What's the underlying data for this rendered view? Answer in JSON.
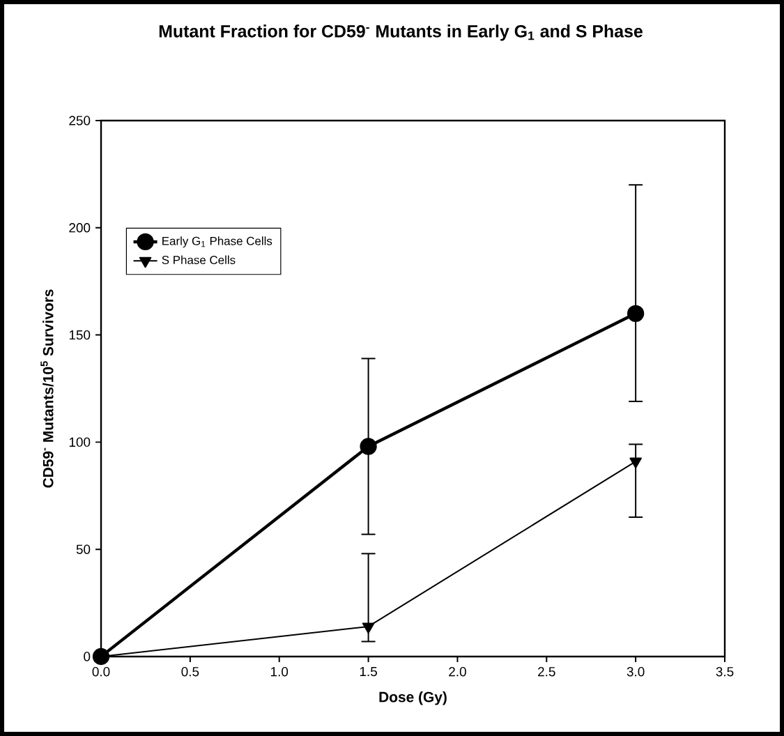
{
  "chart_data": {
    "type": "line",
    "title": "Mutant Fraction for CD59$^{-}$ Mutants in Early G$_{1}$ and S Phase",
    "xlabel": "Dose (Gy)",
    "ylabel": "CD59$^{-}$ Mutants/10$^{5}$ Survivors",
    "x": [
      0.0,
      1.5,
      3.0
    ],
    "series": [
      {
        "name": "Early G$_{1}$ Phase Cells",
        "color": "#000000",
        "marker": "circle",
        "values": [
          0,
          98,
          160
        ],
        "errors": [
          null,
          [
            57,
            139
          ],
          [
            119,
            220
          ]
        ]
      },
      {
        "name": "S Phase Cells",
        "color": "#000000",
        "marker": "triangle",
        "values": [
          0,
          14,
          91
        ],
        "errors": [
          null,
          [
            7,
            48
          ],
          [
            65,
            99
          ]
        ]
      }
    ],
    "xlim": [
      0,
      3.5
    ],
    "xticks": [
      {
        "value": 0,
        "label": "0.0"
      },
      {
        "value": 0.5,
        "label": "0.5"
      },
      {
        "value": 1,
        "label": "1.0"
      },
      {
        "value": 1.5,
        "label": "1.5"
      },
      {
        "value": 2,
        "label": "2.0"
      },
      {
        "value": 2.5,
        "label": "2.5"
      },
      {
        "value": 3,
        "label": "3.0"
      },
      {
        "value": 3.5,
        "label": "3.5"
      }
    ],
    "ylim": [
      0,
      250
    ],
    "yticks": [
      0,
      50,
      100,
      150,
      200,
      250
    ],
    "grid": false,
    "legend": "top left",
    "line_style": "solid"
  }
}
